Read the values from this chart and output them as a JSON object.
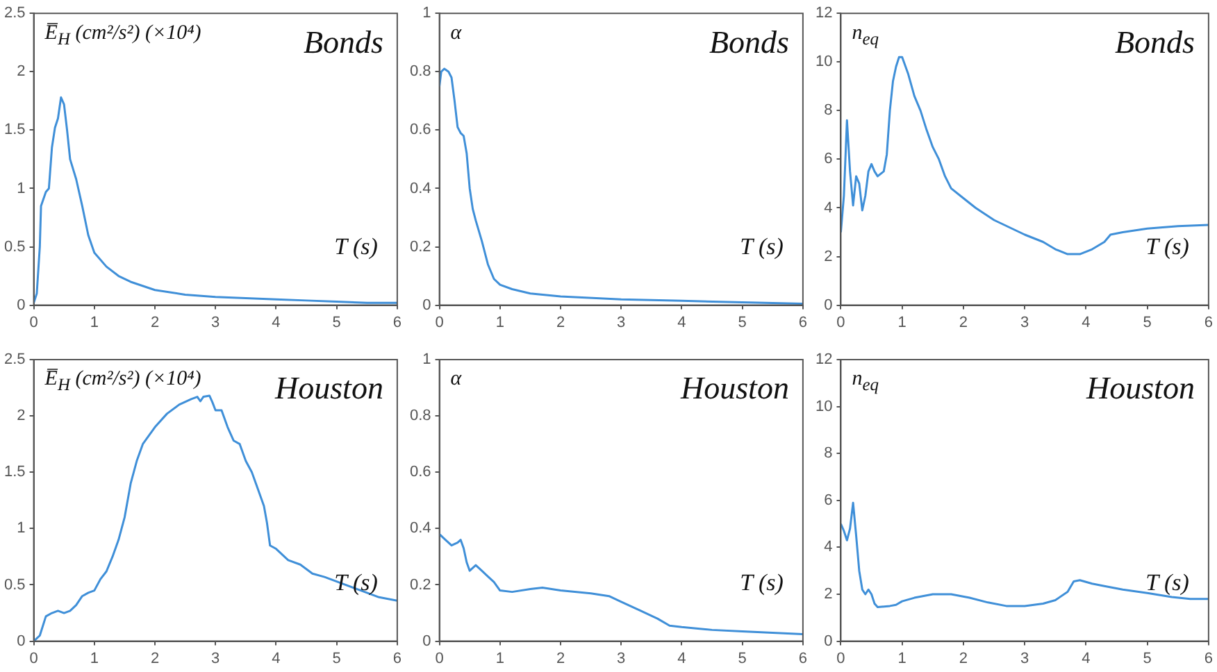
{
  "chart_data": [
    {
      "type": "line",
      "title": "Bonds",
      "xlabel": "T (s)",
      "ylabel": "E̅$_{H}$ (cm²/s²) (×10⁴)",
      "xlim": [
        0,
        6
      ],
      "xticks": [
        0,
        1,
        2,
        3,
        4,
        5,
        6
      ],
      "ylim": [
        0,
        2.5
      ],
      "yticks": [
        0,
        0.5,
        1,
        1.5,
        2,
        2.5
      ],
      "x": [
        0,
        0.05,
        0.1,
        0.12,
        0.2,
        0.25,
        0.3,
        0.35,
        0.4,
        0.45,
        0.5,
        0.55,
        0.6,
        0.7,
        0.8,
        0.9,
        1.0,
        1.2,
        1.4,
        1.6,
        2,
        2.5,
        3,
        3.5,
        4,
        4.5,
        5,
        5.5,
        6
      ],
      "series": [
        {
          "color": "#3f8fd8",
          "values": [
            0.02,
            0.1,
            0.5,
            0.85,
            0.97,
            1.0,
            1.35,
            1.52,
            1.6,
            1.78,
            1.72,
            1.5,
            1.25,
            1.08,
            0.85,
            0.6,
            0.45,
            0.33,
            0.25,
            0.2,
            0.13,
            0.09,
            0.07,
            0.06,
            0.05,
            0.04,
            0.03,
            0.02,
            0.02
          ]
        }
      ]
    },
    {
      "type": "line",
      "title": "Bonds",
      "xlabel": "T (s)",
      "ylabel": "α",
      "xlim": [
        0,
        6
      ],
      "xticks": [
        0,
        1,
        2,
        3,
        4,
        5,
        6
      ],
      "ylim": [
        0,
        1
      ],
      "yticks": [
        0,
        0.2,
        0.4,
        0.6,
        0.8,
        1
      ],
      "x": [
        0,
        0.03,
        0.08,
        0.15,
        0.2,
        0.25,
        0.3,
        0.35,
        0.4,
        0.45,
        0.5,
        0.55,
        0.6,
        0.7,
        0.8,
        0.9,
        1.0,
        1.2,
        1.5,
        2,
        3,
        4,
        5,
        6
      ],
      "series": [
        {
          "color": "#3f8fd8",
          "values": [
            0.75,
            0.8,
            0.81,
            0.8,
            0.78,
            0.7,
            0.61,
            0.59,
            0.58,
            0.52,
            0.4,
            0.33,
            0.29,
            0.22,
            0.14,
            0.09,
            0.07,
            0.055,
            0.04,
            0.03,
            0.02,
            0.015,
            0.01,
            0.005
          ]
        }
      ]
    },
    {
      "type": "line",
      "title": "Bonds",
      "xlabel": "T (s)",
      "ylabel": "n$_{eq}$",
      "xlim": [
        0,
        6
      ],
      "xticks": [
        0,
        1,
        2,
        3,
        4,
        5,
        6
      ],
      "ylim": [
        0,
        12
      ],
      "yticks": [
        0,
        2,
        4,
        6,
        8,
        10,
        12
      ],
      "x": [
        0,
        0.05,
        0.1,
        0.15,
        0.2,
        0.25,
        0.3,
        0.35,
        0.4,
        0.45,
        0.5,
        0.55,
        0.6,
        0.7,
        0.75,
        0.8,
        0.85,
        0.9,
        0.95,
        1.0,
        1.1,
        1.2,
        1.3,
        1.4,
        1.5,
        1.6,
        1.7,
        1.8,
        2,
        2.2,
        2.5,
        3,
        3.3,
        3.5,
        3.7,
        3.9,
        4.1,
        4.3,
        4.4,
        4.6,
        5,
        5.5,
        6
      ],
      "series": [
        {
          "color": "#3f8fd8",
          "values": [
            3.0,
            4.5,
            7.6,
            5.5,
            4.1,
            5.3,
            5.0,
            3.9,
            4.5,
            5.5,
            5.8,
            5.5,
            5.3,
            5.5,
            6.2,
            8,
            9.2,
            9.8,
            10.2,
            10.2,
            9.5,
            8.6,
            8.0,
            7.2,
            6.5,
            6.0,
            5.3,
            4.8,
            4.4,
            4.0,
            3.5,
            2.9,
            2.6,
            2.3,
            2.1,
            2.1,
            2.3,
            2.6,
            2.9,
            3.0,
            3.15,
            3.25,
            3.3
          ]
        }
      ]
    },
    {
      "type": "line",
      "title": "Houston",
      "xlabel": "T (s)",
      "ylabel": "E̅$_{H}$ (cm²/s²) (×10⁴)",
      "xlim": [
        0,
        6
      ],
      "xticks": [
        0,
        1,
        2,
        3,
        4,
        5,
        6
      ],
      "ylim": [
        0,
        2.5
      ],
      "yticks": [
        0,
        0.5,
        1,
        1.5,
        2,
        2.5
      ],
      "x": [
        0,
        0.1,
        0.2,
        0.3,
        0.4,
        0.5,
        0.6,
        0.7,
        0.8,
        0.9,
        1.0,
        1.1,
        1.2,
        1.3,
        1.4,
        1.5,
        1.6,
        1.7,
        1.8,
        2.0,
        2.2,
        2.4,
        2.6,
        2.7,
        2.75,
        2.8,
        2.9,
        2.95,
        3.0,
        3.1,
        3.2,
        3.3,
        3.4,
        3.5,
        3.6,
        3.7,
        3.8,
        3.85,
        3.9,
        4.0,
        4.2,
        4.4,
        4.6,
        4.8,
        5,
        5.4,
        5.7,
        6
      ],
      "series": [
        {
          "color": "#3f8fd8",
          "values": [
            0,
            0.05,
            0.22,
            0.25,
            0.27,
            0.25,
            0.27,
            0.32,
            0.4,
            0.43,
            0.45,
            0.55,
            0.62,
            0.75,
            0.9,
            1.1,
            1.4,
            1.6,
            1.75,
            1.9,
            2.02,
            2.1,
            2.15,
            2.17,
            2.13,
            2.17,
            2.18,
            2.12,
            2.05,
            2.05,
            1.9,
            1.78,
            1.75,
            1.6,
            1.5,
            1.35,
            1.2,
            1.05,
            0.85,
            0.82,
            0.72,
            0.68,
            0.6,
            0.57,
            0.53,
            0.45,
            0.39,
            0.36
          ]
        }
      ]
    },
    {
      "type": "line",
      "title": "Houston",
      "xlabel": "T (s)",
      "ylabel": "α",
      "xlim": [
        0,
        6
      ],
      "xticks": [
        0,
        1,
        2,
        3,
        4,
        5,
        6
      ],
      "ylim": [
        0,
        1
      ],
      "yticks": [
        0,
        0.2,
        0.4,
        0.6,
        0.8,
        1
      ],
      "x": [
        0,
        0.1,
        0.2,
        0.3,
        0.35,
        0.4,
        0.45,
        0.5,
        0.6,
        0.7,
        0.8,
        0.9,
        1.0,
        1.2,
        1.5,
        1.7,
        2,
        2.5,
        2.8,
        3,
        3.3,
        3.6,
        3.8,
        4,
        4.5,
        5,
        5.5,
        6
      ],
      "series": [
        {
          "color": "#3f8fd8",
          "values": [
            0.38,
            0.36,
            0.34,
            0.35,
            0.36,
            0.33,
            0.28,
            0.25,
            0.27,
            0.25,
            0.23,
            0.21,
            0.18,
            0.175,
            0.185,
            0.19,
            0.18,
            0.17,
            0.16,
            0.14,
            0.11,
            0.08,
            0.055,
            0.05,
            0.04,
            0.035,
            0.03,
            0.025
          ]
        }
      ]
    },
    {
      "type": "line",
      "title": "Houston",
      "xlabel": "T (s)",
      "ylabel": "n$_{eq}$",
      "xlim": [
        0,
        6
      ],
      "xticks": [
        0,
        1,
        2,
        3,
        4,
        5,
        6
      ],
      "ylim": [
        0,
        12
      ],
      "yticks": [
        0,
        2,
        4,
        6,
        8,
        10,
        12
      ],
      "x": [
        0,
        0.05,
        0.1,
        0.15,
        0.2,
        0.25,
        0.3,
        0.35,
        0.4,
        0.45,
        0.5,
        0.55,
        0.6,
        0.8,
        0.9,
        1.0,
        1.2,
        1.5,
        1.8,
        2.1,
        2.4,
        2.7,
        3.0,
        3.3,
        3.5,
        3.7,
        3.8,
        3.9,
        4.1,
        4.3,
        4.6,
        5,
        5.4,
        5.7,
        6
      ],
      "series": [
        {
          "color": "#3f8fd8",
          "values": [
            5.0,
            4.7,
            4.3,
            4.8,
            5.9,
            4.5,
            3.0,
            2.2,
            2.0,
            2.2,
            2.0,
            1.6,
            1.45,
            1.5,
            1.55,
            1.7,
            1.85,
            2.0,
            2.0,
            1.85,
            1.65,
            1.5,
            1.5,
            1.6,
            1.75,
            2.1,
            2.55,
            2.6,
            2.45,
            2.35,
            2.2,
            2.05,
            1.88,
            1.8,
            1.8
          ]
        }
      ]
    }
  ]
}
